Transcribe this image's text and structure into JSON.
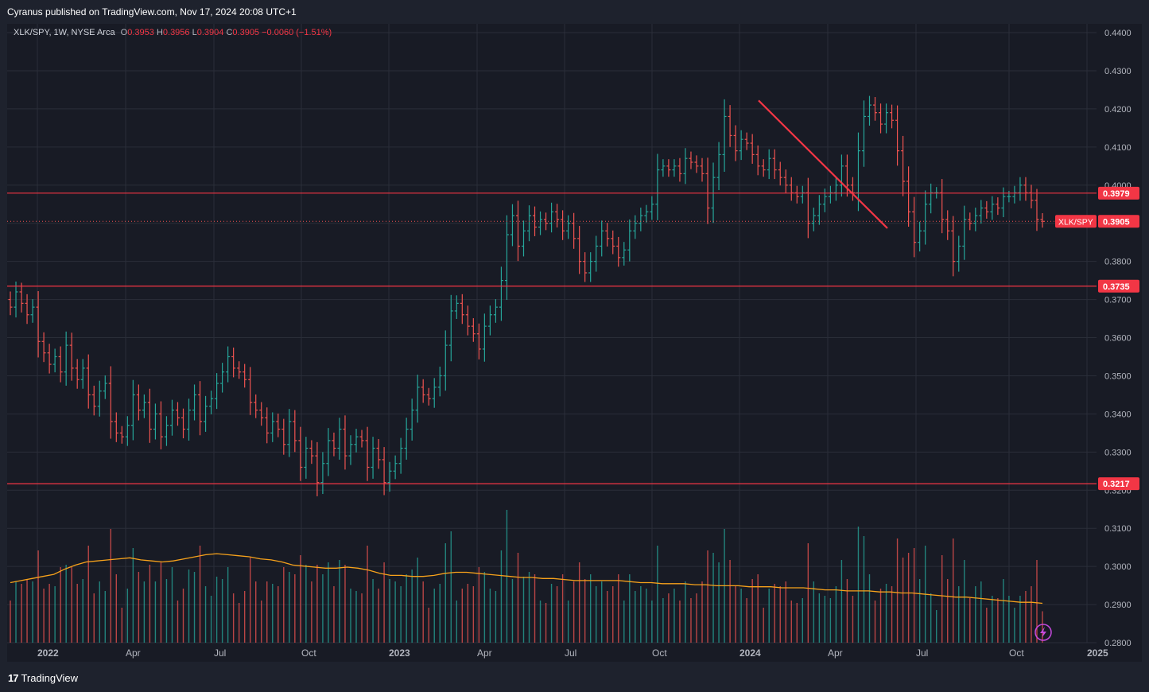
{
  "header": {
    "published_by": "Cyranus published on TradingView.com, Nov 17, 2024 20:08 UTC+1"
  },
  "legend": {
    "symbol": "XLK/SPY, 1W, NYSE Arca",
    "open_label": "O",
    "open": "0.3953",
    "high_label": "H",
    "high": "0.3956",
    "low_label": "L",
    "low": "0.3904",
    "close_label": "C",
    "close": "0.3905",
    "change": "−0.0060 (−1.51%)"
  },
  "footer": {
    "brand": "TradingView"
  },
  "colors": {
    "up": "#26a69a",
    "down": "#ef5350",
    "level_line": "#f23645",
    "trend_line": "#f23645",
    "volume_ma": "#f7a21b",
    "grid": "#2a2e39",
    "axis_text": "#b2b5be"
  },
  "chart_data": {
    "type": "bar",
    "symbol": "XLK/SPY",
    "interval": "1W",
    "y_axis": {
      "min": 0.28,
      "max": 0.44,
      "scale": "linear",
      "position": "right",
      "tick_labels": [
        "0.4400",
        "0.4300",
        "0.4200",
        "0.4100",
        "0.4000",
        "0.3900",
        "0.3800",
        "0.3700",
        "0.3600",
        "0.3500",
        "0.3400",
        "0.3300",
        "0.3200",
        "0.3100",
        "0.3000",
        "0.2900",
        "0.2800"
      ]
    },
    "x_axis": {
      "tick_labels": [
        "2022",
        "Apr",
        "Jul",
        "Oct",
        "2023",
        "Apr",
        "Jul",
        "Oct",
        "2024",
        "Apr",
        "Jul",
        "Oct",
        "2025"
      ]
    },
    "grid": true,
    "horizontal_levels": [
      {
        "value": 0.3979,
        "label": "0.3979"
      },
      {
        "value": 0.3735,
        "label": "0.3735"
      },
      {
        "value": 0.3217,
        "label": "0.3217"
      }
    ],
    "last_price": {
      "value": 0.3905,
      "label": "0.3905",
      "symbol_tag": "XLK/SPY"
    },
    "trendline": {
      "from": {
        "date": "2024-01-29",
        "value": 0.4222
      },
      "to": {
        "date": "2024-06-10",
        "value": 0.3887
      }
    },
    "closes": [
      0.368,
      0.372,
      0.369,
      0.366,
      0.368,
      0.359,
      0.356,
      0.353,
      0.355,
      0.351,
      0.358,
      0.352,
      0.349,
      0.352,
      0.345,
      0.342,
      0.346,
      0.348,
      0.338,
      0.335,
      0.334,
      0.337,
      0.345,
      0.341,
      0.343,
      0.336,
      0.34,
      0.334,
      0.337,
      0.341,
      0.339,
      0.336,
      0.341,
      0.345,
      0.338,
      0.342,
      0.344,
      0.348,
      0.351,
      0.355,
      0.352,
      0.351,
      0.349,
      0.343,
      0.341,
      0.339,
      0.335,
      0.338,
      0.336,
      0.332,
      0.338,
      0.333,
      0.326,
      0.331,
      0.329,
      0.322,
      0.327,
      0.333,
      0.331,
      0.336,
      0.329,
      0.332,
      0.334,
      0.333,
      0.326,
      0.331,
      0.328,
      0.322,
      0.325,
      0.327,
      0.331,
      0.336,
      0.341,
      0.347,
      0.345,
      0.344,
      0.347,
      0.35,
      0.358,
      0.367,
      0.369,
      0.366,
      0.363,
      0.361,
      0.357,
      0.363,
      0.366,
      0.368,
      0.375,
      0.387,
      0.392,
      0.384,
      0.388,
      0.392,
      0.389,
      0.391,
      0.39,
      0.393,
      0.391,
      0.388,
      0.39,
      0.386,
      0.38,
      0.377,
      0.38,
      0.384,
      0.388,
      0.386,
      0.384,
      0.381,
      0.383,
      0.388,
      0.39,
      0.392,
      0.393,
      0.395,
      0.404,
      0.405,
      0.404,
      0.405,
      0.403,
      0.407,
      0.406,
      0.405,
      0.403,
      0.394,
      0.402,
      0.408,
      0.418,
      0.413,
      0.409,
      0.412,
      0.411,
      0.408,
      0.405,
      0.404,
      0.407,
      0.404,
      0.402,
      0.4,
      0.398,
      0.397,
      0.398,
      0.39,
      0.392,
      0.395,
      0.397,
      0.398,
      0.4,
      0.405,
      0.4,
      0.398,
      0.409,
      0.418,
      0.421,
      0.419,
      0.416,
      0.419,
      0.417,
      0.409,
      0.401,
      0.393,
      0.385,
      0.388,
      0.395,
      0.398,
      0.398,
      0.391,
      0.388,
      0.38,
      0.384,
      0.391,
      0.39,
      0.392,
      0.394,
      0.393,
      0.395,
      0.394,
      0.397,
      0.397,
      0.398,
      0.4,
      0.398,
      0.396,
      0.391,
      0.3905
    ],
    "volume_ma_relative": [
      0.35,
      0.37,
      0.39,
      0.41,
      0.43,
      0.48,
      0.52,
      0.55,
      0.56,
      0.57,
      0.58,
      0.59,
      0.57,
      0.56,
      0.55,
      0.56,
      0.58,
      0.6,
      0.62,
      0.63,
      0.62,
      0.61,
      0.6,
      0.58,
      0.57,
      0.55,
      0.52,
      0.51,
      0.5,
      0.49,
      0.49,
      0.5,
      0.49,
      0.47,
      0.44,
      0.42,
      0.42,
      0.41,
      0.41,
      0.42,
      0.44,
      0.45,
      0.45,
      0.44,
      0.43,
      0.42,
      0.41,
      0.4,
      0.4,
      0.39,
      0.39,
      0.38,
      0.37,
      0.37,
      0.37,
      0.37,
      0.37,
      0.36,
      0.35,
      0.35,
      0.34,
      0.34,
      0.34,
      0.33,
      0.33,
      0.32,
      0.32,
      0.32,
      0.31,
      0.31,
      0.31,
      0.3,
      0.3,
      0.3,
      0.29,
      0.28,
      0.28,
      0.27,
      0.27,
      0.27,
      0.26,
      0.26,
      0.25,
      0.25,
      0.24,
      0.23,
      0.22,
      0.21,
      0.21,
      0.2,
      0.19,
      0.18,
      0.17,
      0.16,
      0.16,
      0.15
    ]
  }
}
